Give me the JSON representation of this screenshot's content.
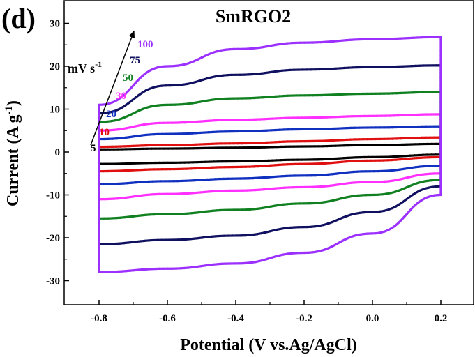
{
  "chart_data": {
    "type": "line",
    "panel_label": "(d)",
    "title": "SmRGO2",
    "xlabel": "Potential (V vs.Ag/AgCl)",
    "ylabel": "Current (A g-1)",
    "ylabel_main": "Current (A g",
    "ylabel_sup": "-1",
    "ylabel_close": ")",
    "xlim": [
      -0.9,
      0.25
    ],
    "ylim": [
      -35,
      33
    ],
    "x_ticks": [
      -0.8,
      -0.6,
      -0.4,
      -0.2,
      0.0,
      0.2
    ],
    "x_tick_labels": [
      "-0.8",
      "-0.6",
      "-0.4",
      "-0.2",
      "0.0",
      "0.2"
    ],
    "y_ticks": [
      -30,
      -20,
      -10,
      0,
      10,
      20,
      30
    ],
    "y_tick_labels": [
      "-30",
      "-20",
      "-10",
      "0",
      "10",
      "20",
      "30"
    ],
    "grid": false,
    "legend_title_main": "mV s",
    "legend_title_sup": "-1",
    "series": [
      {
        "name": "5",
        "color": "#000000",
        "upper": [
          0.6,
          0.8,
          1.0,
          1.3,
          1.6,
          1.9
        ],
        "lower": [
          -2.8,
          -2.5,
          -2.2,
          -1.8,
          -1.2,
          -0.6
        ]
      },
      {
        "name": "10",
        "color": "#e01010",
        "upper": [
          1.2,
          1.6,
          2.0,
          2.5,
          3.0,
          3.4
        ],
        "lower": [
          -4.5,
          -4.0,
          -3.5,
          -2.8,
          -2.0,
          -1.2
        ]
      },
      {
        "name": "20",
        "color": "#1030c0",
        "upper": [
          3.0,
          4.2,
          4.8,
          5.3,
          5.7,
          6.0
        ],
        "lower": [
          -7.5,
          -6.8,
          -6.2,
          -5.5,
          -4.5,
          -3.2
        ]
      },
      {
        "name": "30",
        "color": "#ff30ff",
        "upper": [
          5.0,
          6.8,
          7.5,
          8.0,
          8.4,
          8.8
        ],
        "lower": [
          -11.0,
          -9.8,
          -9.0,
          -8.2,
          -7.0,
          -5.0
        ]
      },
      {
        "name": "50",
        "color": "#108020",
        "upper": [
          7.0,
          11.0,
          12.5,
          13.2,
          13.6,
          14.0
        ],
        "lower": [
          -15.5,
          -14.5,
          -13.5,
          -12.0,
          -10.0,
          -6.5
        ]
      },
      {
        "name": "75",
        "color": "#101060",
        "upper": [
          9.0,
          15.5,
          18.0,
          19.2,
          19.8,
          20.2
        ],
        "lower": [
          -21.5,
          -20.5,
          -19.5,
          -17.5,
          -14.0,
          -8.0
        ]
      },
      {
        "name": "100",
        "color": "#9b30ff",
        "upper": [
          11.0,
          20.0,
          24.0,
          25.5,
          26.3,
          26.8
        ],
        "lower": [
          -28.0,
          -27.2,
          -26.0,
          -23.5,
          -19.0,
          -10.0
        ]
      }
    ]
  }
}
